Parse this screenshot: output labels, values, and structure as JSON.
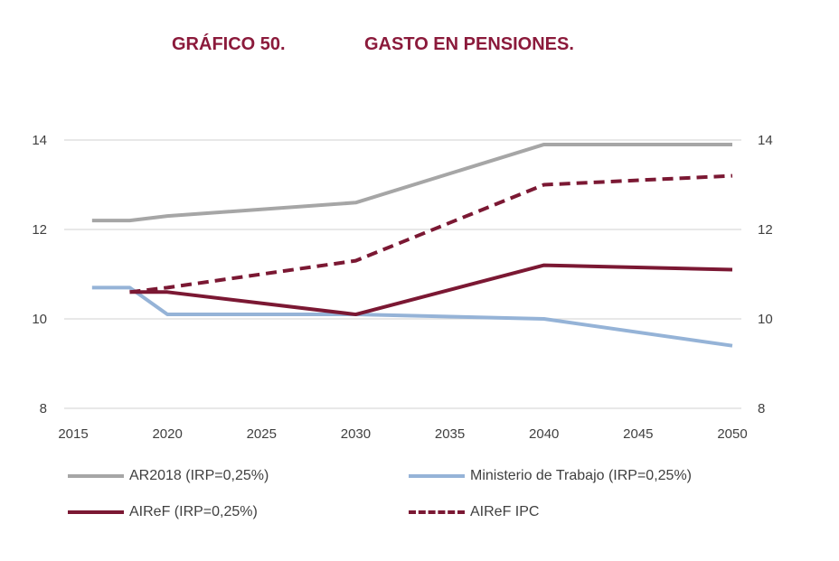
{
  "title": {
    "number": "GRÁFICO 50.",
    "text": "GASTO EN PENSIONES."
  },
  "colors": {
    "title": "#8B1A3B",
    "grid": "#D9D9D9",
    "ar2018": "#A6A6A6",
    "ministerio": "#95B3D7",
    "airef": "#7B1833",
    "airef_ipc": "#7B1833"
  },
  "chart_data": {
    "type": "line",
    "title": "GASTO EN PENSIONES.",
    "xlabel": "",
    "ylabel": "",
    "xlim": [
      2015,
      2050
    ],
    "ylim": [
      8,
      14
    ],
    "x_ticks": [
      "2015",
      "2020",
      "2025",
      "2030",
      "2035",
      "2040",
      "2045",
      "2050"
    ],
    "y_ticks_left": [
      "8",
      "10",
      "12",
      "14"
    ],
    "y_ticks_right": [
      "8",
      "10",
      "12",
      "14"
    ],
    "grid": true,
    "legend_position": "bottom",
    "series": [
      {
        "name": "AR2018 (IRP=0,25%)",
        "key": "ar2018",
        "dash": false,
        "x": [
          2016,
          2018,
          2020,
          2030,
          2040,
          2050
        ],
        "y": [
          12.2,
          12.2,
          12.3,
          12.6,
          13.9,
          13.9
        ]
      },
      {
        "name": "Ministerio de Trabajo (IRP=0,25%)",
        "key": "ministerio",
        "dash": false,
        "x": [
          2016,
          2018,
          2020,
          2030,
          2040,
          2050
        ],
        "y": [
          10.7,
          10.7,
          10.1,
          10.1,
          10.0,
          9.4
        ]
      },
      {
        "name": "AIReF (IRP=0,25%)",
        "key": "airef",
        "dash": false,
        "x": [
          2018,
          2020,
          2030,
          2040,
          2050
        ],
        "y": [
          10.6,
          10.6,
          10.1,
          11.2,
          11.1
        ]
      },
      {
        "name": "AIReF IPC",
        "key": "airef_ipc",
        "dash": true,
        "x": [
          2018,
          2020,
          2030,
          2040,
          2050
        ],
        "y": [
          10.6,
          10.7,
          11.3,
          13.0,
          13.2
        ]
      }
    ]
  }
}
